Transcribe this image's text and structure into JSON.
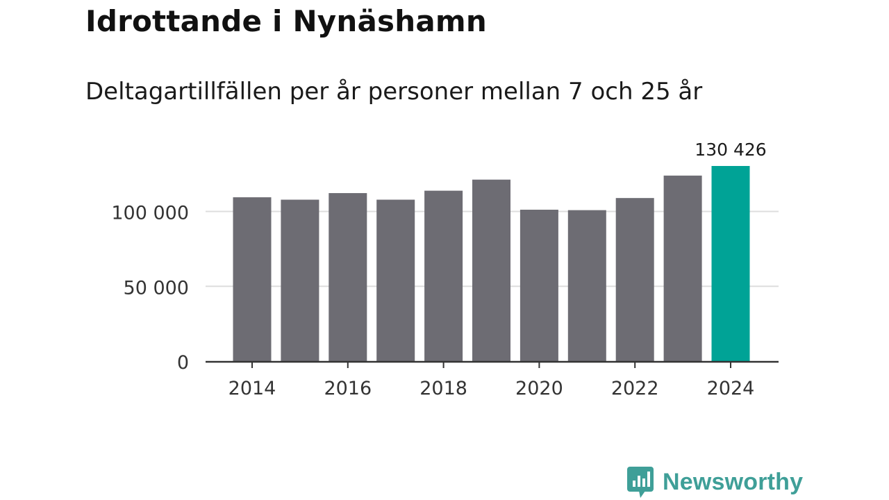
{
  "header": {
    "title": "Idrottande i Nynäshamn",
    "subtitle": "Deltagartillfällen per år personer mellan 7 och 25 år"
  },
  "chart_data": {
    "type": "bar",
    "title": "Idrottande i Nynäshamn",
    "subtitle": "Deltagartillfällen per år personer mellan 7 och 25 år",
    "categories": [
      "2014",
      "2015",
      "2016",
      "2017",
      "2018",
      "2019",
      "2020",
      "2021",
      "2022",
      "2023",
      "2024"
    ],
    "values": [
      109500,
      107900,
      112300,
      107900,
      113900,
      121300,
      101200,
      100900,
      109000,
      124000,
      130426
    ],
    "highlight_index": 10,
    "highlight_label": "130 426",
    "xticks": [
      "2014",
      "2016",
      "2018",
      "2020",
      "2022",
      "2024"
    ],
    "yticks": [
      0,
      50000,
      100000
    ],
    "ytick_labels": [
      "0",
      "50 000",
      "100 000"
    ],
    "ylim": [
      0,
      130426
    ],
    "xlabel": "",
    "ylabel": "",
    "grid": true,
    "colors": {
      "bar": "#6d6c73",
      "highlight": "#00a396",
      "grid": "#dddddd",
      "axis": "#333333",
      "text": "#333333"
    }
  },
  "logo": {
    "text": "Newsworthy",
    "color": "#3f9f98"
  }
}
